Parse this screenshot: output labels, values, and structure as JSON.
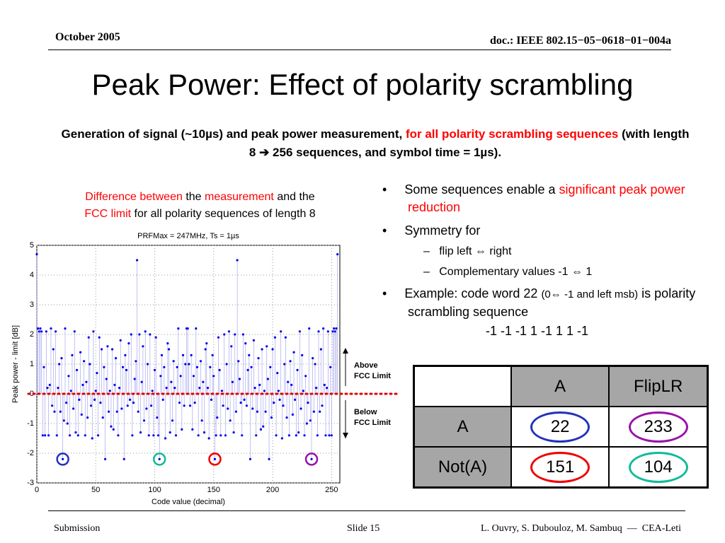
{
  "header": {
    "date": "October 2005",
    "doc": "doc.: IEEE 802.15−05−0618−01−004a"
  },
  "title": "Peak Power: Effect of polarity scrambling",
  "subtitle": {
    "a": "Generation of signal (~10µs) and peak power measurement,",
    "b": "for all polarity scrambling sequences",
    "c": "(with length 8 ➔ 256 sequences, and symbol time = 1µs)."
  },
  "caption": {
    "a": "Difference between",
    "b": "the",
    "c": "measurement",
    "d": "and the",
    "e": "FCC limit",
    "f": "for all polarity sequences of length 8"
  },
  "chart_data": {
    "type": "stem",
    "title": "PRFMax = 247MHz, Ts = 1µs",
    "xlabel": "Code value (decimal)",
    "ylabel": "Peak power - limit [dB]",
    "color": "#0000ee",
    "xlim": [
      0,
      257
    ],
    "ylim": [
      -3,
      5
    ],
    "xticks": [
      0,
      50,
      100,
      150,
      200,
      250
    ],
    "yticks": [
      -3,
      -2,
      -1,
      0,
      1,
      2,
      3,
      4,
      5
    ],
    "grid": true,
    "reference_line": 0,
    "reference_color": "#dd0000",
    "annotations": {
      "above": "Above FCC Limit",
      "below": "Below FCC Limit"
    },
    "highlights": [
      {
        "x": 22,
        "color": "#2233bb"
      },
      {
        "x": 104,
        "color": "#11bb99"
      },
      {
        "x": 151,
        "color": "#ee0000"
      },
      {
        "x": 233,
        "color": "#9911aa"
      }
    ],
    "x": [
      0,
      1,
      2,
      3,
      4,
      5,
      6,
      7,
      8,
      9,
      10,
      11,
      12,
      13,
      14,
      15,
      16,
      17,
      18,
      19,
      20,
      21,
      22,
      23,
      24,
      25,
      26,
      27,
      28,
      29,
      30,
      31,
      32,
      33,
      34,
      35,
      36,
      37,
      38,
      39,
      40,
      41,
      42,
      43,
      44,
      45,
      46,
      47,
      48,
      49,
      50,
      51,
      52,
      53,
      54,
      55,
      56,
      57,
      58,
      59,
      60,
      61,
      62,
      63,
      64,
      65,
      66,
      67,
      68,
      69,
      70,
      71,
      72,
      73,
      74,
      75,
      76,
      77,
      78,
      79,
      80,
      81,
      82,
      83,
      84,
      85,
      86,
      87,
      88,
      89,
      90,
      91,
      92,
      93,
      94,
      95,
      96,
      97,
      98,
      99,
      100,
      101,
      102,
      103,
      104,
      105,
      106,
      107,
      108,
      109,
      110,
      111,
      112,
      113,
      114,
      115,
      116,
      117,
      118,
      119,
      120,
      121,
      122,
      123,
      124,
      125,
      126,
      127,
      128,
      129,
      130,
      131,
      132,
      133,
      134,
      135,
      136,
      137,
      138,
      139,
      140,
      141,
      142,
      143,
      144,
      145,
      146,
      147,
      148,
      149,
      150,
      151,
      152,
      153,
      154,
      155,
      156,
      157,
      158,
      159,
      160,
      161,
      162,
      163,
      164,
      165,
      166,
      167,
      168,
      169,
      170,
      171,
      172,
      173,
      174,
      175,
      176,
      177,
      178,
      179,
      180,
      181,
      182,
      183,
      184,
      185,
      186,
      187,
      188,
      189,
      190,
      191,
      192,
      193,
      194,
      195,
      196,
      197,
      198,
      199,
      200,
      201,
      202,
      203,
      204,
      205,
      206,
      207,
      208,
      209,
      210,
      211,
      212,
      213,
      214,
      215,
      216,
      217,
      218,
      219,
      220,
      221,
      222,
      223,
      224,
      225,
      226,
      227,
      228,
      229,
      230,
      231,
      232,
      233,
      234,
      235,
      236,
      237,
      238,
      239,
      240,
      241,
      242,
      243,
      244,
      245,
      246,
      247,
      248,
      249,
      250,
      251,
      252,
      253,
      254,
      255
    ],
    "values": [
      4.7,
      2.2,
      2.1,
      2.2,
      2.1,
      -1.4,
      0.9,
      -1.4,
      2.1,
      0.2,
      -1.4,
      0.3,
      2.2,
      -0.4,
      1.5,
      -0.6,
      2.1,
      -1.4,
      0.2,
      1.0,
      -0.6,
      1.2,
      -2.2,
      -0.9,
      2.2,
      -0.3,
      -1.0,
      0.6,
      -1.4,
      0.1,
      1.3,
      -0.5,
      2.1,
      -1.3,
      0.8,
      -1.4,
      -0.2,
      1.4,
      -0.7,
      0.3,
      1.1,
      -1.4,
      0.4,
      -0.8,
      1.9,
      1.0,
      -0.4,
      -1.5,
      2.1,
      -0.2,
      0.1,
      0.7,
      -1.4,
      1.9,
      -0.3,
      1.5,
      -0.8,
      0.9,
      -2.2,
      0.5,
      1.6,
      -0.6,
      0.1,
      -1.1,
      1.5,
      -1.2,
      0.3,
      1.2,
      -0.6,
      -1.4,
      0.2,
      1.8,
      -0.5,
      0.9,
      -2.2,
      1.3,
      0.8,
      -0.4,
      1.7,
      -0.2,
      2.0,
      -1.4,
      -0.3,
      0.5,
      1.1,
      4.5,
      -0.6,
      2.0,
      -1.3,
      0.4,
      1.6,
      -0.9,
      2.1,
      -0.5,
      1.0,
      -1.4,
      2.0,
      -0.4,
      0.1,
      -1.4,
      0.8,
      1.9,
      -0.8,
      -1.4,
      -2.2,
      0.6,
      1.3,
      -0.2,
      0.9,
      -1.5,
      0.2,
      1.7,
      1.5,
      -1.3,
      0.4,
      -0.9,
      1.1,
      0.2,
      -1.4,
      0.9,
      2.2,
      -0.3,
      0.6,
      -1.2,
      1.3,
      -0.4,
      1.0,
      2.2,
      2.2,
      1.0,
      -0.4,
      1.3,
      -1.2,
      0.6,
      -0.3,
      2.2,
      0.9,
      -1.4,
      0.2,
      1.1,
      -0.9,
      0.4,
      -1.3,
      1.5,
      1.7,
      0.2,
      -1.5,
      0.9,
      -0.2,
      1.3,
      0.6,
      -2.2,
      -1.4,
      -0.8,
      1.9,
      0.8,
      -1.4,
      0.1,
      -0.4,
      2.0,
      -1.4,
      1.0,
      -0.5,
      2.1,
      -0.9,
      1.6,
      0.4,
      -1.3,
      2.0,
      -0.6,
      4.5,
      1.1,
      0.5,
      -0.3,
      -1.4,
      2.0,
      -0.2,
      1.7,
      -0.4,
      0.8,
      1.3,
      -2.2,
      0.9,
      -0.5,
      1.8,
      0.2,
      -1.4,
      -0.6,
      1.2,
      0.3,
      -1.2,
      1.5,
      -1.1,
      0.1,
      -0.6,
      1.6,
      0.5,
      -2.2,
      0.9,
      -0.8,
      1.5,
      -0.3,
      1.9,
      -1.4,
      0.7,
      0.1,
      -0.2,
      2.1,
      -1.5,
      -0.4,
      1.0,
      1.9,
      -0.8,
      0.4,
      -1.4,
      1.1,
      0.3,
      -0.7,
      1.4,
      -0.2,
      -1.4,
      0.8,
      -1.3,
      2.1,
      -0.5,
      1.3,
      0.1,
      -1.4,
      0.6,
      -1.0,
      -0.3,
      2.2,
      -0.9,
      -2.2,
      1.2,
      -0.6,
      1.0,
      0.2,
      -1.4,
      2.1,
      -0.6,
      1.5,
      -0.4,
      2.2,
      0.3,
      -1.4,
      0.2,
      2.1,
      -1.4,
      0.9,
      -1.4,
      2.1,
      2.2,
      2.1,
      2.2,
      4.7
    ]
  },
  "bullets": {
    "b1a": "Some sequences enable a",
    "b1b": "significant peak power reduction",
    "b2": "Symmetry for",
    "s1": "flip left ⇔ right",
    "s2": "Complementary values -1 ⇔ 1",
    "b3a": "Example: code word 22",
    "b3b": "(0⇔ -1 and left msb)",
    "b3c": "is polarity scrambling sequence",
    "b3d": "-1 -1 -1 1 -1 1 1 -1"
  },
  "table": {
    "header": [
      "A",
      "FlipLR"
    ],
    "rows": [
      [
        "A",
        "22",
        "233"
      ],
      [
        "Not(A)",
        "151",
        "104"
      ]
    ],
    "circle_colors": [
      [
        "#2233bb",
        "#9911aa"
      ],
      [
        "#ee0000",
        "#11bb99"
      ]
    ]
  },
  "footer": {
    "left": "Submission",
    "center": "Slide 15",
    "right": "L. Ouvry, S. Dubouloz, M. Sambuq  —  CEA-Leti"
  }
}
